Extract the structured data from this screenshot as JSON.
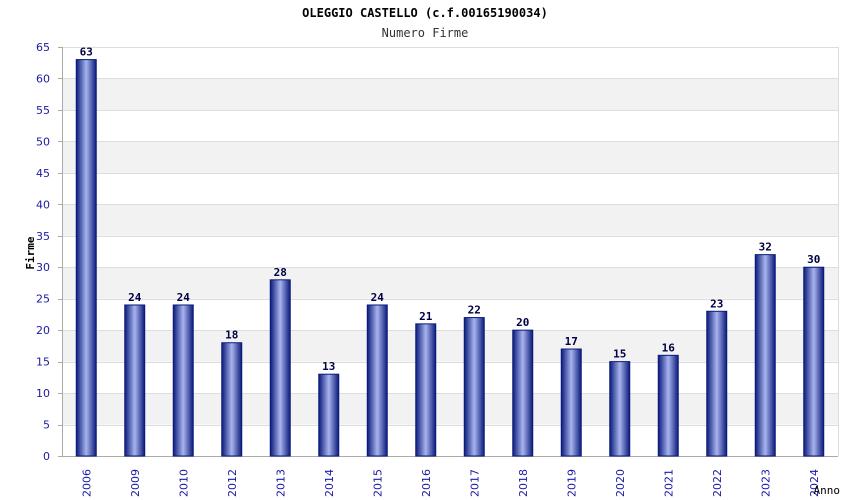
{
  "chart_data": {
    "type": "bar",
    "title": "OLEGGIO CASTELLO (c.f.00165190034)",
    "subtitle": "Numero Firme",
    "xlabel": "Anno",
    "ylabel": "Firme",
    "ylim": [
      0,
      65
    ],
    "yticks": [
      0,
      5,
      10,
      15,
      20,
      25,
      30,
      35,
      40,
      45,
      50,
      55,
      60,
      65
    ],
    "categories": [
      "2006",
      "2009",
      "2010",
      "2012",
      "2013",
      "2014",
      "2015",
      "2016",
      "2017",
      "2018",
      "2019",
      "2020",
      "2021",
      "2022",
      "2023",
      "2024"
    ],
    "values": [
      63,
      24,
      24,
      18,
      28,
      13,
      24,
      21,
      22,
      20,
      17,
      15,
      16,
      23,
      32,
      30
    ],
    "grid": true,
    "colors": {
      "bar_dark": "#0a1a7a",
      "bar_light": "#a8b4ee",
      "axis_text": "#1a1aa6",
      "band": "#f2f2f2",
      "grid": "#dddddd",
      "label": "#000044"
    }
  }
}
